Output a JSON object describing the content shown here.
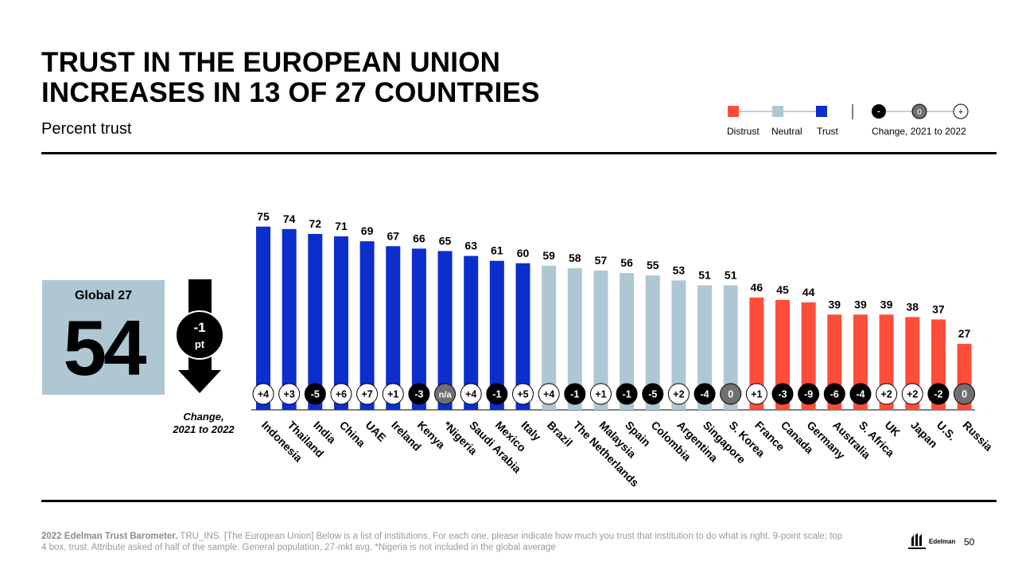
{
  "title_line1": "TRUST IN THE EUROPEAN UNION",
  "title_line2": "INCREASES IN 13 OF 27 COUNTRIES",
  "subtitle": "Percent trust",
  "legend": {
    "distrust": "Distrust",
    "neutral": "Neutral",
    "trust": "Trust",
    "change_label": "Change, 2021 to 2022",
    "minus": "-",
    "zero": "0",
    "plus": "+"
  },
  "global": {
    "label": "Global 27",
    "value": "54",
    "change_value": "-1",
    "change_unit": "pt",
    "change_caption_line1": "Change,",
    "change_caption_line2": "2021 to 2022"
  },
  "colors": {
    "trust": "#0b2ecd",
    "neutral": "#aec7d3",
    "distrust": "#ff4d3a",
    "negative_circle": "#000000",
    "zero_circle": "#707070",
    "positive_circle": "#ffffff"
  },
  "chart_data": {
    "type": "bar",
    "title": "TRUST IN THE EUROPEAN UNION INCREASES IN 13 OF 27 COUNTRIES",
    "ylabel": "Percent trust",
    "xlabel": "",
    "ylim": [
      0,
      100
    ],
    "categories": [
      "Indonesia",
      "Thailand",
      "India",
      "China",
      "UAE",
      "Ireland",
      "Kenya",
      "*Nigeria",
      "Saudi Arabia",
      "Mexico",
      "Italy",
      "Brazil",
      "The Netherlands",
      "Malaysia",
      "Spain",
      "Colombia",
      "Argentina",
      "Singapore",
      "S. Korea",
      "France",
      "Canada",
      "Germany",
      "Australia",
      "S. Africa",
      "UK",
      "Japan",
      "U.S.",
      "Russia"
    ],
    "values": [
      75,
      74,
      72,
      71,
      69,
      67,
      66,
      65,
      63,
      61,
      60,
      59,
      58,
      57,
      56,
      55,
      53,
      51,
      51,
      46,
      45,
      44,
      39,
      39,
      39,
      38,
      37,
      27
    ],
    "levels": [
      "trust",
      "trust",
      "trust",
      "trust",
      "trust",
      "trust",
      "trust",
      "trust",
      "trust",
      "trust",
      "trust",
      "neutral",
      "neutral",
      "neutral",
      "neutral",
      "neutral",
      "neutral",
      "neutral",
      "neutral",
      "distrust",
      "distrust",
      "distrust",
      "distrust",
      "distrust",
      "distrust",
      "distrust",
      "distrust",
      "distrust"
    ],
    "changes": [
      "+4",
      "+3",
      "-5",
      "+6",
      "+7",
      "+1",
      "-3",
      "n/a",
      "+4",
      "-1",
      "+5",
      "+4",
      "-1",
      "+1",
      "-1",
      "-5",
      "+2",
      "-4",
      "0",
      "+1",
      "-3",
      "-9",
      "-6",
      "-4",
      "+2",
      "+2",
      "-2",
      "0"
    ]
  },
  "footer": {
    "bold": "2022 Edelman Trust Barometer.",
    "text": " TRU_INS. [The European Union] Below is a list of institutions. For each one, please indicate how much you trust that institution to do what is right. 9-point scale; top 4 box, trust. Attribute asked of half of the sample. General population, 27-mkt avg. *Nigeria is not included in the global average"
  },
  "logo_text": "Edelman",
  "page_number": "50"
}
